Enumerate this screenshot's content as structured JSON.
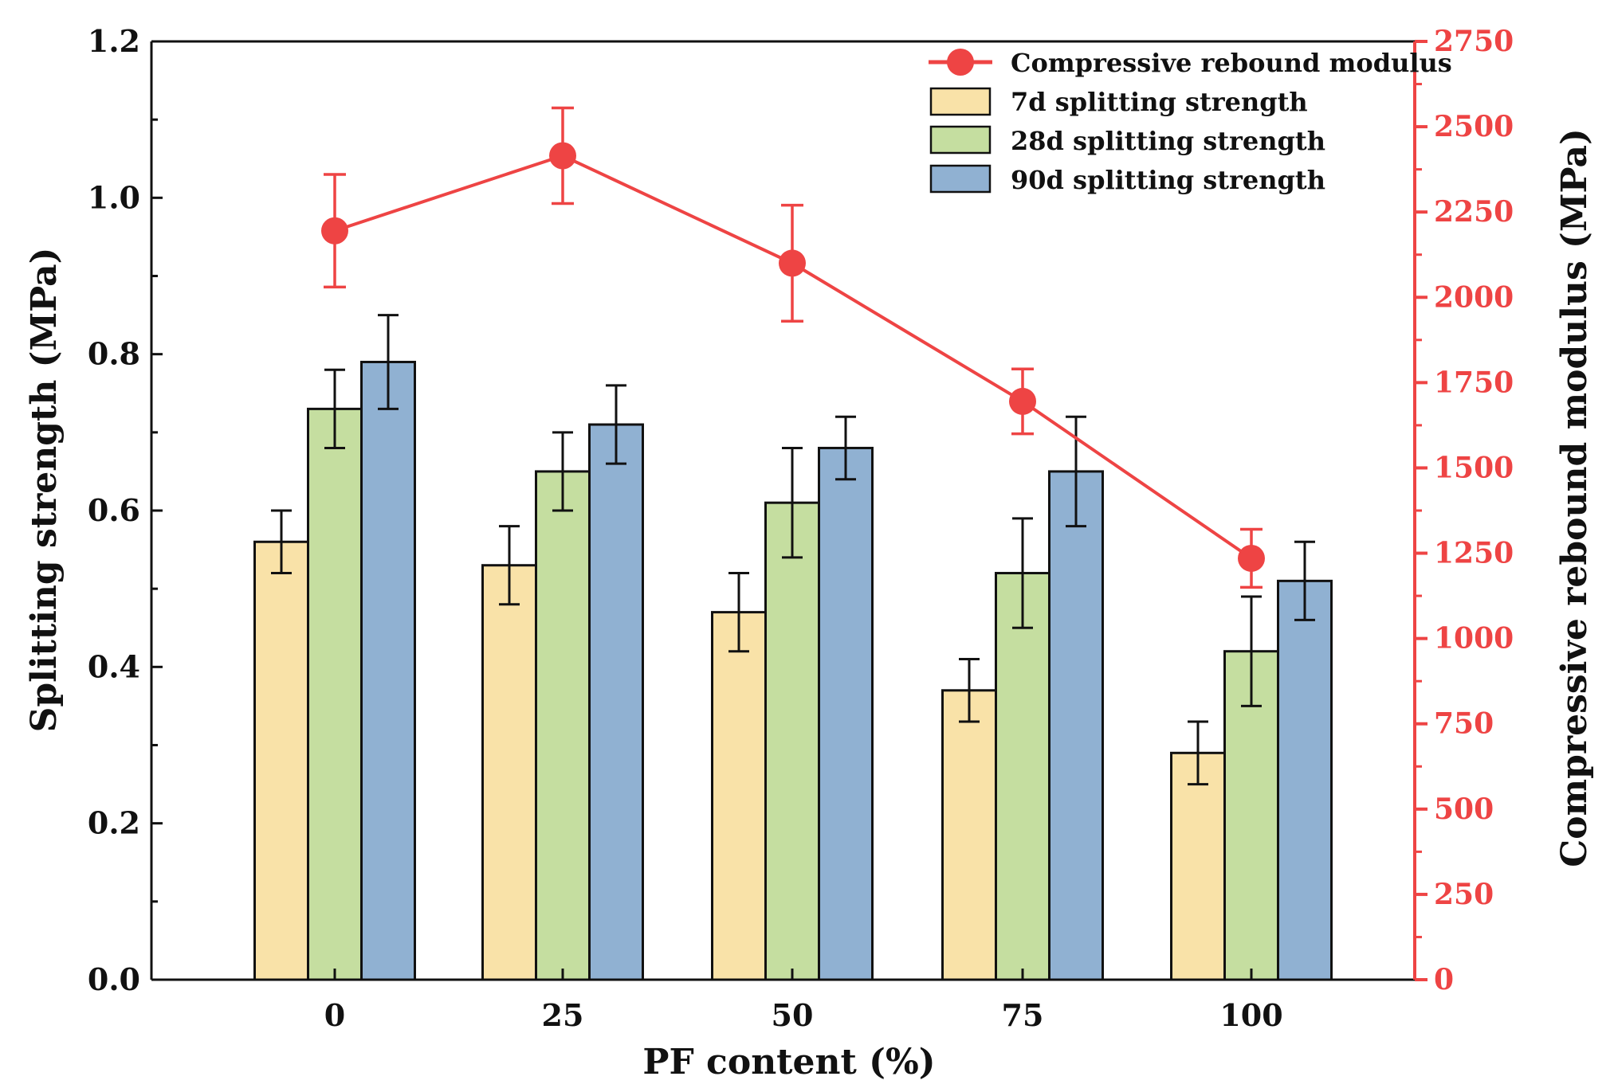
{
  "chart_data": {
    "type": "bar",
    "title": "",
    "xlabel": "PF content (%)",
    "ylabel": "Splitting strength (MPa)",
    "ylabel_right": "Compressive rebound modulus (MPa)",
    "categories": [
      "0",
      "25",
      "50",
      "75",
      "100"
    ],
    "ylim": [
      0,
      1.2
    ],
    "yticks": [
      "0.0",
      "0.2",
      "0.4",
      "0.6",
      "0.8",
      "1.0",
      "1.2"
    ],
    "ylim_right": [
      0,
      2750
    ],
    "yticks_right": [
      "0",
      "250",
      "500",
      "750",
      "1000",
      "1250",
      "1500",
      "1750",
      "2000",
      "2250",
      "2500",
      "2750"
    ],
    "series": [
      {
        "name": "7d splitting strength",
        "kind": "bar",
        "axis": "left",
        "color": "#f9e2a8",
        "values": [
          0.56,
          0.53,
          0.47,
          0.37,
          0.29
        ],
        "errors": [
          0.04,
          0.05,
          0.05,
          0.04,
          0.04
        ]
      },
      {
        "name": "28d splitting strength",
        "kind": "bar",
        "axis": "left",
        "color": "#c5dea0",
        "values": [
          0.73,
          0.65,
          0.61,
          0.52,
          0.42
        ],
        "errors": [
          0.05,
          0.05,
          0.07,
          0.07,
          0.07
        ]
      },
      {
        "name": "90d splitting strength",
        "kind": "bar",
        "axis": "left",
        "color": "#90b1d2",
        "values": [
          0.79,
          0.71,
          0.68,
          0.65,
          0.51
        ],
        "errors": [
          0.06,
          0.05,
          0.04,
          0.07,
          0.05
        ]
      },
      {
        "name": "Compressive rebound modulus",
        "kind": "line",
        "axis": "right",
        "color": "#ee4444",
        "values": [
          2195,
          2415,
          2100,
          1695,
          1235
        ],
        "errors": [
          165,
          140,
          170,
          95,
          85
        ]
      }
    ],
    "legend": {
      "position": "top-right",
      "entries": [
        "Compressive rebound modulus",
        "7d splitting strength",
        "28d splitting strength",
        "90d splitting strength"
      ]
    },
    "grid": false
  }
}
